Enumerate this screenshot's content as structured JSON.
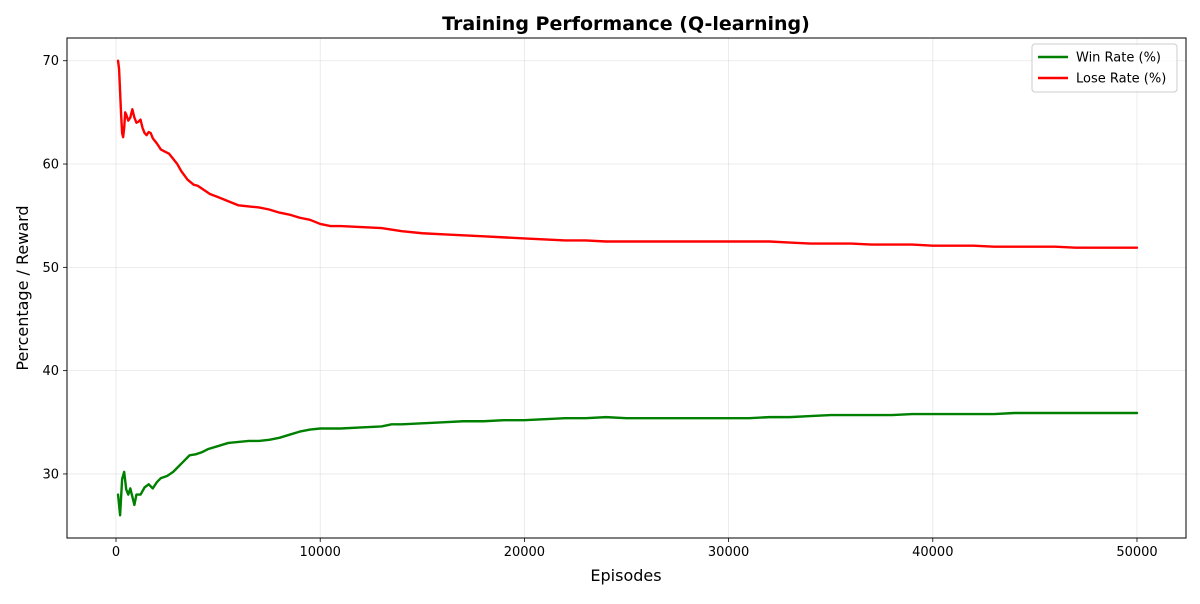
{
  "chart_data": {
    "type": "line",
    "title": "Training Performance (Q-learning)",
    "xlabel": "Episodes",
    "ylabel": "Percentage / Reward",
    "xlim": [
      -2400,
      52400
    ],
    "ylim": [
      23.8,
      72.2
    ],
    "xticks": [
      0,
      10000,
      20000,
      30000,
      40000,
      50000
    ],
    "yticks": [
      30,
      40,
      50,
      60,
      70
    ],
    "grid": true,
    "legend_position": "top-right",
    "series": [
      {
        "name": "Win Rate (%)",
        "color": "#008000",
        "x": [
          100,
          200,
          300,
          400,
          500,
          600,
          700,
          800,
          900,
          1000,
          1200,
          1400,
          1600,
          1800,
          2000,
          2200,
          2500,
          2800,
          3000,
          3300,
          3600,
          3900,
          4200,
          4500,
          5000,
          5500,
          6000,
          6500,
          7000,
          7500,
          8000,
          8500,
          9000,
          9500,
          10000,
          11000,
          12000,
          13000,
          13500,
          14000,
          15000,
          16000,
          17000,
          18000,
          19000,
          20000,
          21000,
          22000,
          23000,
          24000,
          25000,
          26000,
          27000,
          28000,
          29000,
          30000,
          31000,
          32000,
          33000,
          34000,
          35000,
          36000,
          37000,
          38000,
          39000,
          40000,
          41000,
          42000,
          43000,
          44000,
          45000,
          46000,
          47000,
          48000,
          49000,
          50000
        ],
        "y": [
          28.0,
          26.0,
          29.5,
          30.2,
          28.5,
          28.0,
          28.6,
          27.8,
          27.0,
          28.0,
          28.0,
          28.7,
          29.0,
          28.6,
          29.2,
          29.6,
          29.8,
          30.2,
          30.6,
          31.2,
          31.8,
          31.9,
          32.1,
          32.4,
          32.7,
          33.0,
          33.1,
          33.2,
          33.2,
          33.3,
          33.5,
          33.8,
          34.1,
          34.3,
          34.4,
          34.4,
          34.5,
          34.6,
          34.8,
          34.8,
          34.9,
          35.0,
          35.1,
          35.1,
          35.2,
          35.2,
          35.3,
          35.4,
          35.4,
          35.5,
          35.4,
          35.4,
          35.4,
          35.4,
          35.4,
          35.4,
          35.4,
          35.5,
          35.5,
          35.6,
          35.7,
          35.7,
          35.7,
          35.7,
          35.8,
          35.8,
          35.8,
          35.8,
          35.8,
          35.9,
          35.9,
          35.9,
          35.9,
          35.9,
          35.9,
          35.9
        ]
      },
      {
        "name": "Lose Rate (%)",
        "color": "#ff0000",
        "x": [
          100,
          150,
          200,
          250,
          300,
          350,
          400,
          450,
          500,
          600,
          700,
          800,
          900,
          1000,
          1100,
          1200,
          1300,
          1400,
          1500,
          1600,
          1700,
          1800,
          2000,
          2200,
          2400,
          2600,
          2800,
          3000,
          3200,
          3500,
          3800,
          4000,
          4300,
          4600,
          5000,
          5500,
          6000,
          6500,
          7000,
          7500,
          8000,
          8500,
          9000,
          9500,
          10000,
          10500,
          11000,
          12000,
          13000,
          14000,
          15000,
          16000,
          17000,
          18000,
          19000,
          20000,
          21000,
          22000,
          23000,
          24000,
          25000,
          26000,
          27000,
          28000,
          29000,
          30000,
          31000,
          32000,
          33000,
          34000,
          35000,
          36000,
          37000,
          38000,
          39000,
          40000,
          41000,
          42000,
          43000,
          44000,
          45000,
          46000,
          47000,
          48000,
          49000,
          50000
        ],
        "y": [
          70.0,
          69.2,
          67.0,
          64.8,
          63.0,
          62.6,
          63.5,
          65.0,
          64.8,
          64.2,
          64.5,
          65.3,
          64.5,
          64.0,
          64.1,
          64.3,
          63.5,
          63.0,
          62.8,
          63.1,
          63.0,
          62.5,
          62.0,
          61.4,
          61.2,
          61.0,
          60.5,
          60.0,
          59.3,
          58.5,
          58.0,
          57.9,
          57.5,
          57.1,
          56.8,
          56.4,
          56.0,
          55.9,
          55.8,
          55.6,
          55.3,
          55.1,
          54.8,
          54.6,
          54.2,
          54.0,
          54.0,
          53.9,
          53.8,
          53.5,
          53.3,
          53.2,
          53.1,
          53.0,
          52.9,
          52.8,
          52.7,
          52.6,
          52.6,
          52.5,
          52.5,
          52.5,
          52.5,
          52.5,
          52.5,
          52.5,
          52.5,
          52.5,
          52.4,
          52.3,
          52.3,
          52.3,
          52.2,
          52.2,
          52.2,
          52.1,
          52.1,
          52.1,
          52.0,
          52.0,
          52.0,
          52.0,
          51.9,
          51.9,
          51.9,
          51.9
        ]
      }
    ]
  }
}
